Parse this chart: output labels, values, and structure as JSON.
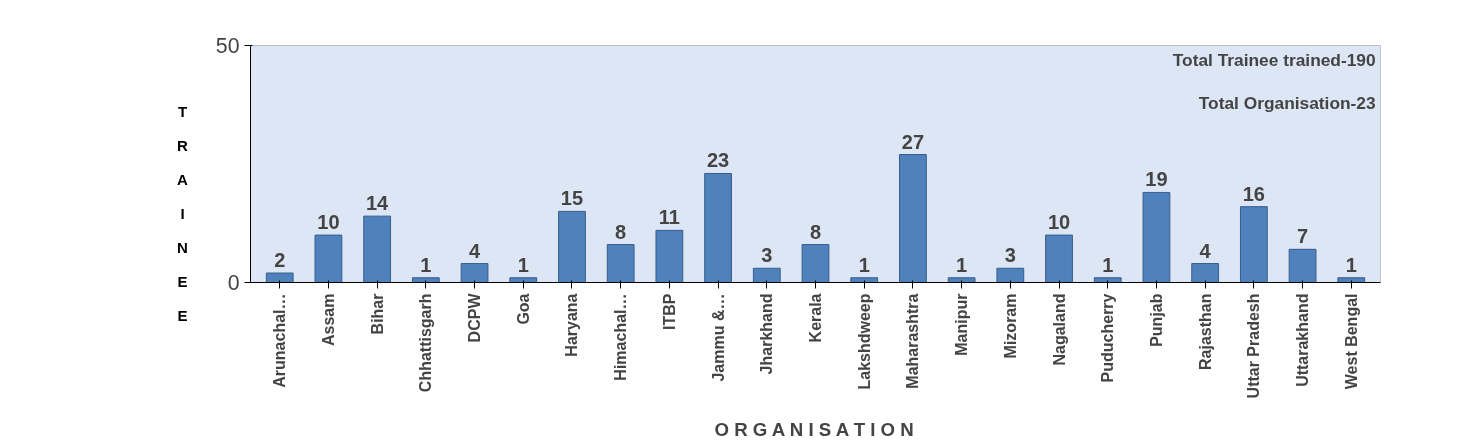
{
  "chart_data": {
    "type": "bar",
    "categories": [
      "Arunachal…",
      "Assam",
      "Bihar",
      "Chhattisgarh",
      "DCPW",
      "Goa",
      "Haryana",
      "Himachal…",
      "ITBP",
      "Jammu &…",
      "Jharkhand",
      "Kerala",
      "Lakshdweep",
      "Maharashtra",
      "Manipur",
      "Mizoram",
      "Nagaland",
      "Puducherry",
      "Punjab",
      "Rajasthan",
      "Uttar Pradesh",
      "Uttarakhand",
      "West Bengal"
    ],
    "values": [
      2,
      10,
      14,
      1,
      4,
      1,
      15,
      8,
      11,
      23,
      3,
      8,
      1,
      27,
      1,
      3,
      10,
      1,
      19,
      4,
      16,
      7,
      1
    ],
    "color": "#4f81bd",
    "ylim": [
      0,
      50
    ],
    "yticks": [
      0,
      50
    ],
    "grid": false,
    "data_labels": true,
    "xlabel": "O R G A N I S A T I O N",
    "ylabel": "TRAINEE",
    "annotations": [
      "Total Trainee trained-190",
      "Total Organisation-23"
    ]
  }
}
